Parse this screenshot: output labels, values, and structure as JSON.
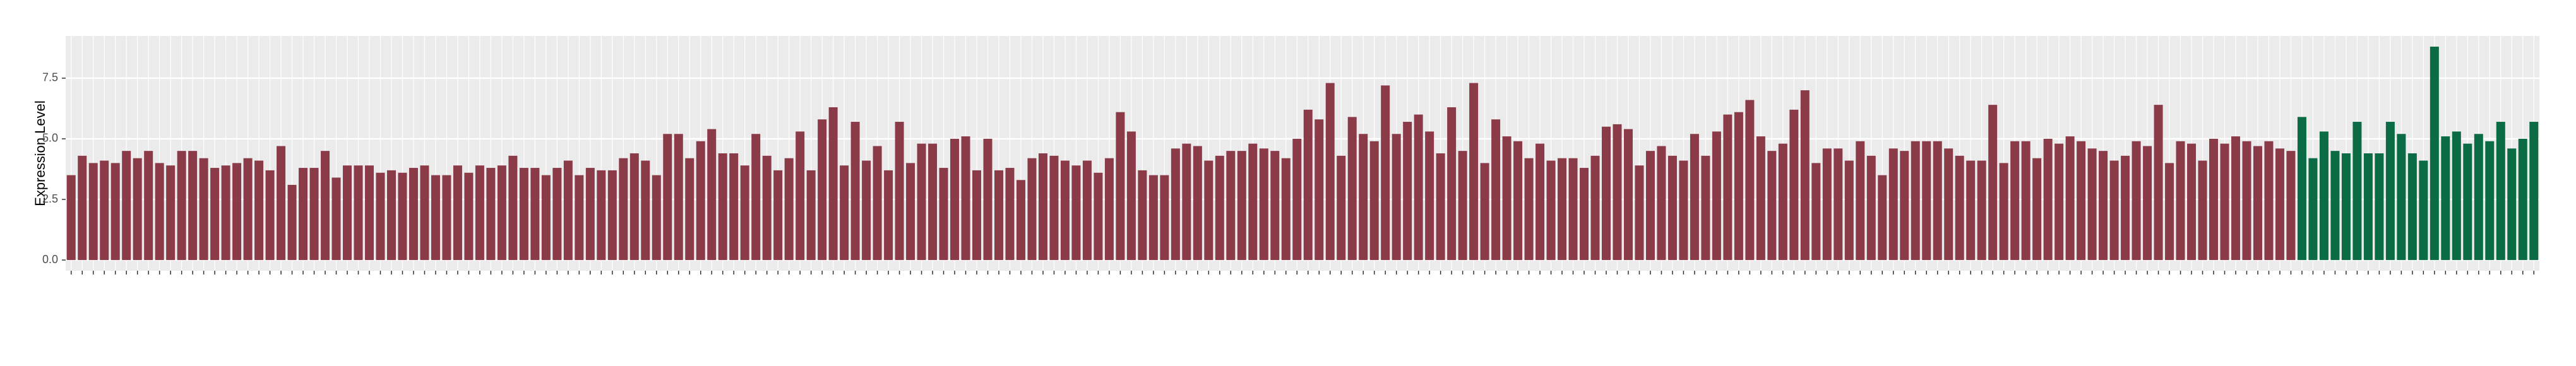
{
  "chart_data": {
    "type": "bar",
    "y_label": "Expression Level",
    "categories": [
      null,
      null,
      null,
      null,
      null,
      null,
      null,
      null,
      null,
      null,
      null,
      null,
      null,
      null,
      null,
      null,
      null,
      null,
      null,
      null,
      null,
      null,
      null,
      null,
      null,
      null,
      null,
      null,
      null,
      null,
      null,
      null,
      null,
      null,
      null,
      null,
      null,
      null,
      null,
      null,
      null,
      null,
      null,
      null,
      null,
      null,
      null,
      null,
      null,
      null,
      null,
      null,
      null,
      null,
      null,
      null,
      null,
      null,
      null,
      null,
      null,
      null,
      null,
      null,
      null,
      null,
      null,
      null,
      null,
      null,
      null,
      null,
      null,
      null,
      null,
      null,
      null,
      null,
      null,
      null,
      null,
      null,
      null,
      null,
      null,
      null,
      null,
      null,
      null,
      null,
      null,
      null,
      null,
      null,
      null,
      null,
      null,
      null,
      null,
      null,
      null,
      null,
      null,
      null,
      null,
      null,
      null,
      null,
      null,
      null,
      null,
      null,
      null,
      null,
      null,
      null,
      null,
      null,
      null,
      null,
      null,
      null,
      null,
      null,
      null,
      null,
      null,
      null,
      null,
      null,
      null,
      null,
      null,
      null,
      null,
      null,
      null,
      null,
      null,
      null,
      null,
      null,
      null,
      null,
      null,
      null,
      null,
      null,
      null,
      null,
      null,
      null,
      null,
      null,
      null,
      null,
      null,
      null,
      null,
      null,
      null,
      null,
      null,
      null,
      null,
      null,
      null,
      null,
      null,
      null,
      null,
      null,
      null,
      null,
      null,
      null,
      null,
      null,
      null,
      null,
      null,
      null,
      null,
      null,
      null,
      null,
      null,
      null,
      null,
      null,
      null,
      null,
      null,
      null,
      null,
      null,
      null,
      null,
      null,
      null,
      null,
      null,
      null,
      null,
      null,
      null,
      null,
      null,
      null,
      null,
      null,
      null,
      null,
      null,
      null,
      null,
      null,
      null,
      null,
      null,
      null,
      null,
      null,
      null
    ],
    "values": [
      3.5,
      4.3,
      4.0,
      4.1,
      4.0,
      4.5,
      4.2,
      4.5,
      4.0,
      3.9,
      4.5,
      4.5,
      4.2,
      3.8,
      3.9,
      4.0,
      4.2,
      4.1,
      3.7,
      4.7,
      3.1,
      3.8,
      3.8,
      4.5,
      3.4,
      3.9,
      3.9,
      3.9,
      3.6,
      3.7,
      3.6,
      3.8,
      3.9,
      3.5,
      3.5,
      3.9,
      3.6,
      3.9,
      3.8,
      3.9,
      4.3,
      3.8,
      3.8,
      3.5,
      3.8,
      4.1,
      3.5,
      3.8,
      3.7,
      3.7,
      4.2,
      4.4,
      4.1,
      3.5,
      5.2,
      5.2,
      4.2,
      4.9,
      5.4,
      4.4,
      4.4,
      3.9,
      5.2,
      4.3,
      3.7,
      4.2,
      5.3,
      3.7,
      5.8,
      6.3,
      3.9,
      5.7,
      4.1,
      4.7,
      3.7,
      5.7,
      4.0,
      4.8,
      4.8,
      3.8,
      5.0,
      5.1,
      3.7,
      5.0,
      3.7,
      3.8,
      3.3,
      4.2,
      4.4,
      4.3,
      4.1,
      3.9,
      4.1,
      3.6,
      4.2,
      6.1,
      5.3,
      3.7,
      3.5,
      3.5,
      4.6,
      4.8,
      4.7,
      4.1,
      4.3,
      4.5,
      4.5,
      4.8,
      4.6,
      4.5,
      4.2,
      5.0,
      6.2,
      5.8,
      7.3,
      4.3,
      5.9,
      5.2,
      4.9,
      7.2,
      5.2,
      5.7,
      6.0,
      5.3,
      4.4,
      6.3,
      4.5,
      7.3,
      4.0,
      5.8,
      5.1,
      4.9,
      4.2,
      4.8,
      4.1,
      4.2,
      4.2,
      3.8,
      4.3,
      5.5,
      5.6,
      5.4,
      3.9,
      4.5,
      4.7,
      4.3,
      4.1,
      5.2,
      4.3,
      5.3,
      6.0,
      6.1,
      6.6,
      5.1,
      4.5,
      4.8,
      6.2,
      7.0,
      4.0,
      4.6,
      4.6,
      4.1,
      4.9,
      4.3,
      3.5,
      4.6,
      4.5,
      4.9,
      4.9,
      4.9,
      4.6,
      4.3,
      4.1,
      4.1,
      6.4,
      4.0,
      4.9,
      4.9,
      4.2,
      5.0,
      4.8,
      5.1,
      4.9,
      4.6,
      4.5,
      4.1,
      4.3,
      4.9,
      4.7,
      6.4,
      4.0,
      4.9,
      4.8,
      4.1,
      5.0,
      4.8,
      5.1,
      4.9,
      4.7,
      4.9,
      4.6,
      4.5,
      5.9,
      4.2,
      5.3,
      4.5,
      4.4,
      5.7,
      4.4,
      4.4,
      5.7,
      5.2,
      4.4,
      4.1,
      8.8,
      5.1,
      5.3,
      4.8,
      5.2,
      4.9,
      5.7,
      4.6,
      5.0,
      5.7
    ],
    "colors": [
      "#8b3a48",
      "#8b3a48",
      "#8b3a48",
      "#8b3a48",
      "#8b3a48",
      "#8b3a48",
      "#8b3a48",
      "#8b3a48",
      "#8b3a48",
      "#8b3a48",
      "#8b3a48",
      "#8b3a48",
      "#8b3a48",
      "#8b3a48",
      "#8b3a48",
      "#8b3a48",
      "#8b3a48",
      "#8b3a48",
      "#8b3a48",
      "#8b3a48",
      "#8b3a48",
      "#8b3a48",
      "#8b3a48",
      "#8b3a48",
      "#8b3a48",
      "#8b3a48",
      "#8b3a48",
      "#8b3a48",
      "#8b3a48",
      "#8b3a48",
      "#8b3a48",
      "#8b3a48",
      "#8b3a48",
      "#8b3a48",
      "#8b3a48",
      "#8b3a48",
      "#8b3a48",
      "#8b3a48",
      "#8b3a48",
      "#8b3a48",
      "#8b3a48",
      "#8b3a48",
      "#8b3a48",
      "#8b3a48",
      "#8b3a48",
      "#8b3a48",
      "#8b3a48",
      "#8b3a48",
      "#8b3a48",
      "#8b3a48",
      "#8b3a48",
      "#8b3a48",
      "#8b3a48",
      "#8b3a48",
      "#8b3a48",
      "#8b3a48",
      "#8b3a48",
      "#8b3a48",
      "#8b3a48",
      "#8b3a48",
      "#8b3a48",
      "#8b3a48",
      "#8b3a48",
      "#8b3a48",
      "#8b3a48",
      "#8b3a48",
      "#8b3a48",
      "#8b3a48",
      "#8b3a48",
      "#8b3a48",
      "#8b3a48",
      "#8b3a48",
      "#8b3a48",
      "#8b3a48",
      "#8b3a48",
      "#8b3a48",
      "#8b3a48",
      "#8b3a48",
      "#8b3a48",
      "#8b3a48",
      "#8b3a48",
      "#8b3a48",
      "#8b3a48",
      "#8b3a48",
      "#8b3a48",
      "#8b3a48",
      "#8b3a48",
      "#8b3a48",
      "#8b3a48",
      "#8b3a48",
      "#8b3a48",
      "#8b3a48",
      "#8b3a48",
      "#8b3a48",
      "#8b3a48",
      "#8b3a48",
      "#8b3a48",
      "#8b3a48",
      "#8b3a48",
      "#8b3a48",
      "#8b3a48",
      "#8b3a48",
      "#8b3a48",
      "#8b3a48",
      "#8b3a48",
      "#8b3a48",
      "#8b3a48",
      "#8b3a48",
      "#8b3a48",
      "#8b3a48",
      "#8b3a48",
      "#8b3a48",
      "#8b3a48",
      "#8b3a48",
      "#8b3a48",
      "#8b3a48",
      "#8b3a48",
      "#8b3a48",
      "#8b3a48",
      "#8b3a48",
      "#8b3a48",
      "#8b3a48",
      "#8b3a48",
      "#8b3a48",
      "#8b3a48",
      "#8b3a48",
      "#8b3a48",
      "#8b3a48",
      "#8b3a48",
      "#8b3a48",
      "#8b3a48",
      "#8b3a48",
      "#8b3a48",
      "#8b3a48",
      "#8b3a48",
      "#8b3a48",
      "#8b3a48",
      "#8b3a48",
      "#8b3a48",
      "#8b3a48",
      "#8b3a48",
      "#8b3a48",
      "#8b3a48",
      "#8b3a48",
      "#8b3a48",
      "#8b3a48",
      "#8b3a48",
      "#8b3a48",
      "#8b3a48",
      "#8b3a48",
      "#8b3a48",
      "#8b3a48",
      "#8b3a48",
      "#8b3a48",
      "#8b3a48",
      "#8b3a48",
      "#8b3a48",
      "#8b3a48",
      "#8b3a48",
      "#8b3a48",
      "#8b3a48",
      "#8b3a48",
      "#8b3a48",
      "#8b3a48",
      "#8b3a48",
      "#8b3a48",
      "#8b3a48",
      "#8b3a48",
      "#8b3a48",
      "#8b3a48",
      "#8b3a48",
      "#8b3a48",
      "#8b3a48",
      "#8b3a48",
      "#8b3a48",
      "#8b3a48",
      "#8b3a48",
      "#8b3a48",
      "#8b3a48",
      "#8b3a48",
      "#8b3a48",
      "#8b3a48",
      "#8b3a48",
      "#8b3a48",
      "#8b3a48",
      "#8b3a48",
      "#8b3a48",
      "#8b3a48",
      "#8b3a48",
      "#8b3a48",
      "#8b3a48",
      "#8b3a48",
      "#8b3a48",
      "#8b3a48",
      "#8b3a48",
      "#8b3a48",
      "#8b3a48",
      "#8b3a48",
      "#8b3a48",
      "#8b3a48",
      "#8b3a48",
      "#8b3a48",
      "#0b6b45",
      "#0b6b45",
      "#0b6b45",
      "#0b6b45",
      "#0b6b45",
      "#0b6b45",
      "#0b6b45",
      "#0b6b45",
      "#0b6b45",
      "#0b6b45",
      "#0b6b45",
      "#0b6b45",
      "#0b6b45",
      "#0b6b45",
      "#0b6b45",
      "#0b6b45",
      "#0b6b45",
      "#0b6b45",
      "#0b6b45",
      "#0b6b45",
      "#0b6b45",
      "#0b6b45",
      "#0b6b45",
      "#0b6b45"
    ],
    "ylim": [
      -0.44,
      9.24
    ],
    "yticks": [
      {
        "value": 0,
        "label": "0.0"
      },
      {
        "value": 2.5,
        "label": "2.5"
      },
      {
        "value": 5,
        "label": "5.0"
      },
      {
        "value": 7.5,
        "label": "7.5"
      }
    ],
    "grid": true
  }
}
